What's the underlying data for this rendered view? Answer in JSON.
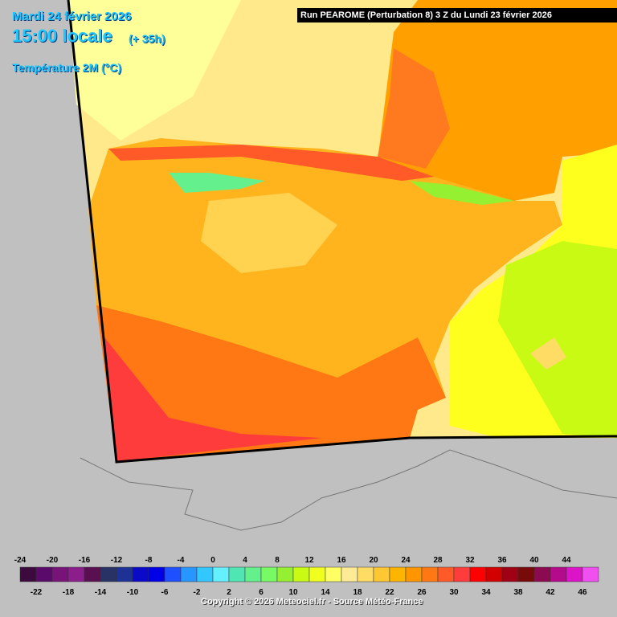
{
  "header": {
    "date": "Mardi 24 février 2026",
    "time": "15:00 locale",
    "lead": "(+ 35h)",
    "variable": "Température 2M (°C)",
    "run": "Run PEAROME (Perturbation 8) 3 Z du Lundi 23 février 2026"
  },
  "footer": {
    "copyright": "Copyright © 2026 Meteociel.fr - Source Météo-France"
  },
  "legend": {
    "labels": [
      -24,
      -22,
      -20,
      -18,
      -16,
      -14,
      -12,
      -10,
      -8,
      -6,
      -4,
      -2,
      0,
      2,
      4,
      6,
      8,
      10,
      12,
      14,
      16,
      18,
      20,
      22,
      24,
      26,
      28,
      30,
      32,
      34,
      36,
      38,
      40,
      42,
      44,
      46
    ],
    "colors": [
      "#3c0a3c",
      "#5a0a6a",
      "#781478",
      "#8c1e8c",
      "#5a0f50",
      "#283264",
      "#1e3296",
      "#0a0ac8",
      "#0000e6",
      "#1e50ff",
      "#2896ff",
      "#32c8ff",
      "#64f0ff",
      "#50e6b4",
      "#64f08c",
      "#78fa64",
      "#96f032",
      "#c8fa14",
      "#f0ff1e",
      "#ffff64",
      "#ffeb96",
      "#ffdc64",
      "#ffc832",
      "#ffb400",
      "#ff9600",
      "#ff7814",
      "#ff5a28",
      "#ff3c3c",
      "#ff0000",
      "#d20000",
      "#a00014",
      "#780a0a",
      "#8c0a50",
      "#b40a8c",
      "#dc14c8",
      "#f050f0"
    ]
  }
}
